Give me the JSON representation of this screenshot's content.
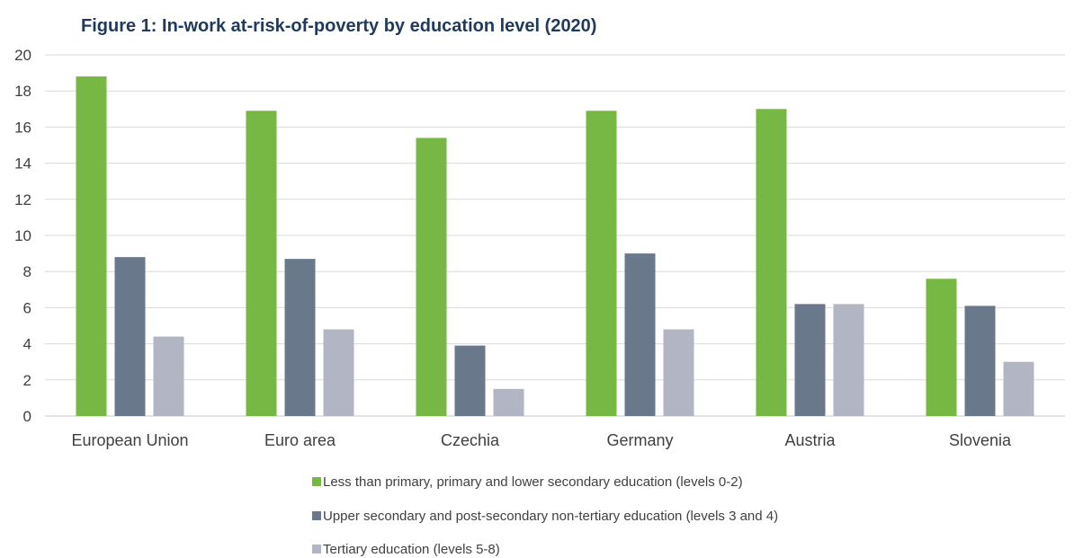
{
  "chart_data": {
    "type": "bar",
    "title": "Figure 1: In-work at-risk-of-poverty by education level (2020)",
    "xlabel": "",
    "ylabel": "",
    "ylim": [
      0,
      20
    ],
    "yticks": [
      0,
      2,
      4,
      6,
      8,
      10,
      12,
      14,
      16,
      18,
      20
    ],
    "grid": true,
    "legend_position": "bottom",
    "categories": [
      "European Union",
      "Euro area",
      "Czechia",
      "Germany",
      "Austria",
      "Slovenia"
    ],
    "series": [
      {
        "name": "Less than primary, primary and lower secondary education (levels 0-2)",
        "color": "#76b843",
        "values": [
          18.8,
          16.9,
          15.4,
          16.9,
          17.0,
          7.6
        ]
      },
      {
        "name": "Upper secondary and post-secondary non-tertiary education (levels 3 and 4)",
        "color": "#6a788c",
        "values": [
          8.8,
          8.7,
          3.9,
          9.0,
          6.2,
          6.1
        ]
      },
      {
        "name": "Tertiary education (levels 5-8)",
        "color": "#b2b6c4",
        "values": [
          4.4,
          4.8,
          1.5,
          4.8,
          6.2,
          3.0
        ]
      }
    ]
  }
}
